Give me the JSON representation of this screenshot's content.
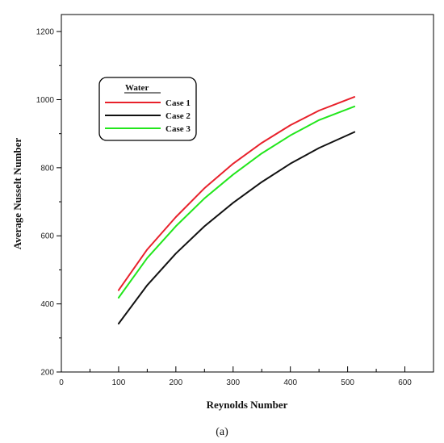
{
  "chart_data": {
    "type": "line",
    "xlabel": "Reynolds Number",
    "ylabel": "Average Nusselt Number",
    "xlim": [
      0,
      650
    ],
    "ylim": [
      200,
      1250
    ],
    "xticks": [
      0,
      100,
      200,
      300,
      400,
      500,
      600
    ],
    "yticks": [
      200,
      400,
      600,
      800,
      1000,
      1200
    ],
    "grid": false,
    "legend": {
      "title": "Water",
      "placement": "top-left"
    },
    "series": [
      {
        "name": "Case 1",
        "color": "#e8212b",
        "x": [
          100,
          150,
          200,
          250,
          300,
          350,
          400,
          450,
          512
        ],
        "y": [
          440,
          560,
          655,
          740,
          812,
          873,
          925,
          968,
          1008
        ]
      },
      {
        "name": "Case 2",
        "color": "#111111",
        "x": [
          100,
          150,
          200,
          250,
          300,
          350,
          400,
          450,
          512
        ],
        "y": [
          342,
          455,
          548,
          628,
          697,
          758,
          812,
          858,
          905
        ]
      },
      {
        "name": "Case 3",
        "color": "#22e61c",
        "x": [
          100,
          150,
          200,
          250,
          300,
          350,
          400,
          450,
          512
        ],
        "y": [
          418,
          535,
          628,
          710,
          780,
          842,
          895,
          940,
          980
        ]
      }
    ]
  },
  "caption": "(a)"
}
